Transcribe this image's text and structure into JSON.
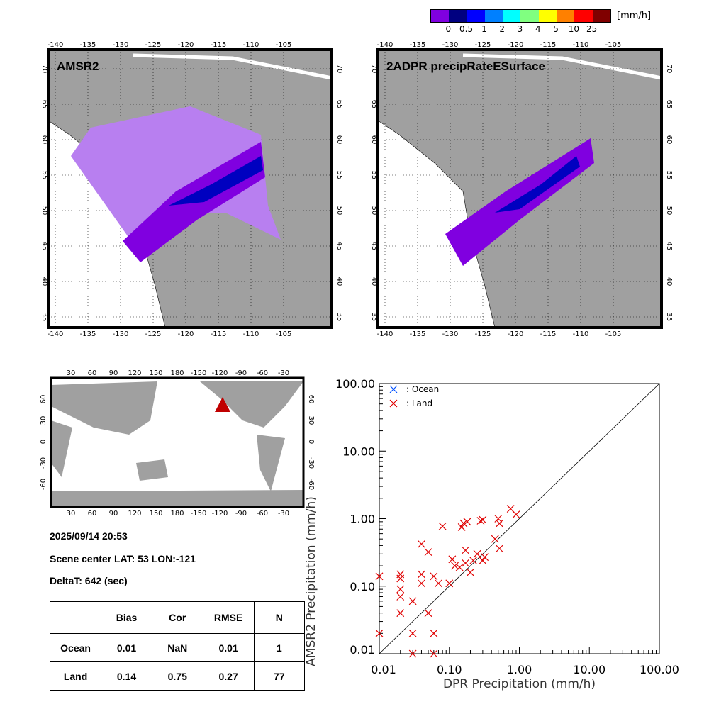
{
  "colorbar": {
    "unit": "[mm/h]",
    "labels": [
      "0",
      "0.5",
      "1",
      "2",
      "3",
      "4",
      "5",
      "10",
      "25"
    ],
    "colors": [
      "#8000e0",
      "#000080",
      "#0000ff",
      "#0080ff",
      "#00ffff",
      "#80ff80",
      "#ffff00",
      "#ff8000",
      "#ff0000",
      "#800000"
    ]
  },
  "map_left": {
    "title": "AMSR2"
  },
  "map_right": {
    "title": "2ADPR precipRateESurface"
  },
  "map_axes": {
    "lon_ticks": [
      "-140",
      "-135",
      "-130",
      "-125",
      "-120",
      "-115",
      "-110",
      "-105"
    ],
    "lat_ticks": [
      "70",
      "65",
      "60",
      "55",
      "50",
      "45",
      "40",
      "35"
    ]
  },
  "world_map": {
    "top_ticks": [
      "30",
      "60",
      "90",
      "120",
      "150",
      "180",
      "-150",
      "-120",
      "-90",
      "-60",
      "-30"
    ],
    "lat_ticks": [
      "60",
      "30",
      "0",
      "-30",
      "-60"
    ],
    "marker_color": "#c00000"
  },
  "info": {
    "datetime": "2025/09/14 20:53",
    "scene_center": "Scene center LAT: 53   LON:-121",
    "delta_t": "DeltaT:  642 (sec)"
  },
  "stats_table": {
    "headers": [
      "",
      "Bias",
      "Cor",
      "RMSE",
      "N"
    ],
    "rows": [
      [
        "Ocean",
        "0.01",
        "NaN",
        "0.01",
        "1"
      ],
      [
        "Land",
        "0.14",
        "0.75",
        "0.27",
        "77"
      ]
    ]
  },
  "chart_data": {
    "type": "scatter",
    "xlabel": "DPR Precipitation (mm/h)",
    "ylabel": "AMSR2 Precipitation (mm/h)",
    "xlim": [
      0.01,
      100
    ],
    "ylim": [
      0.01,
      100
    ],
    "xscale": "log",
    "yscale": "log",
    "tick_labels": [
      "0.01",
      "0.10",
      "1.00",
      "10.00",
      "100.00"
    ],
    "legend": [
      {
        "name": ": Ocean",
        "color": "#0050ff"
      },
      {
        "name": ": Land",
        "color": "#e00000"
      }
    ],
    "legend_position": "top-left",
    "series": [
      {
        "name": ": Land",
        "color": "#e00000",
        "points": [
          [
            0.01,
            0.14
          ],
          [
            0.01,
            0.02
          ],
          [
            0.02,
            0.15
          ],
          [
            0.02,
            0.13
          ],
          [
            0.02,
            0.09
          ],
          [
            0.02,
            0.07
          ],
          [
            0.02,
            0.04
          ],
          [
            0.03,
            0.06
          ],
          [
            0.03,
            0.02
          ],
          [
            0.03,
            0.01
          ],
          [
            0.04,
            0.42
          ],
          [
            0.04,
            0.15
          ],
          [
            0.04,
            0.11
          ],
          [
            0.05,
            0.32
          ],
          [
            0.05,
            0.04
          ],
          [
            0.06,
            0.14
          ],
          [
            0.06,
            0.02
          ],
          [
            0.06,
            0.01
          ],
          [
            0.07,
            0.11
          ],
          [
            0.08,
            0.77
          ],
          [
            0.1,
            0.11
          ],
          [
            0.11,
            0.25
          ],
          [
            0.12,
            0.2
          ],
          [
            0.14,
            0.19
          ],
          [
            0.15,
            0.75
          ],
          [
            0.16,
            0.85
          ],
          [
            0.17,
            0.34
          ],
          [
            0.17,
            0.22
          ],
          [
            0.18,
            0.9
          ],
          [
            0.2,
            0.16
          ],
          [
            0.22,
            0.24
          ],
          [
            0.25,
            0.3
          ],
          [
            0.28,
            0.93
          ],
          [
            0.3,
            0.24
          ],
          [
            0.32,
            0.27
          ],
          [
            0.3,
            0.96
          ],
          [
            0.45,
            0.5
          ],
          [
            0.5,
            1.0
          ],
          [
            0.52,
            0.85
          ],
          [
            0.52,
            0.36
          ],
          [
            0.75,
            1.4
          ],
          [
            0.9,
            1.15
          ]
        ]
      }
    ],
    "reference_line": "1:1"
  }
}
